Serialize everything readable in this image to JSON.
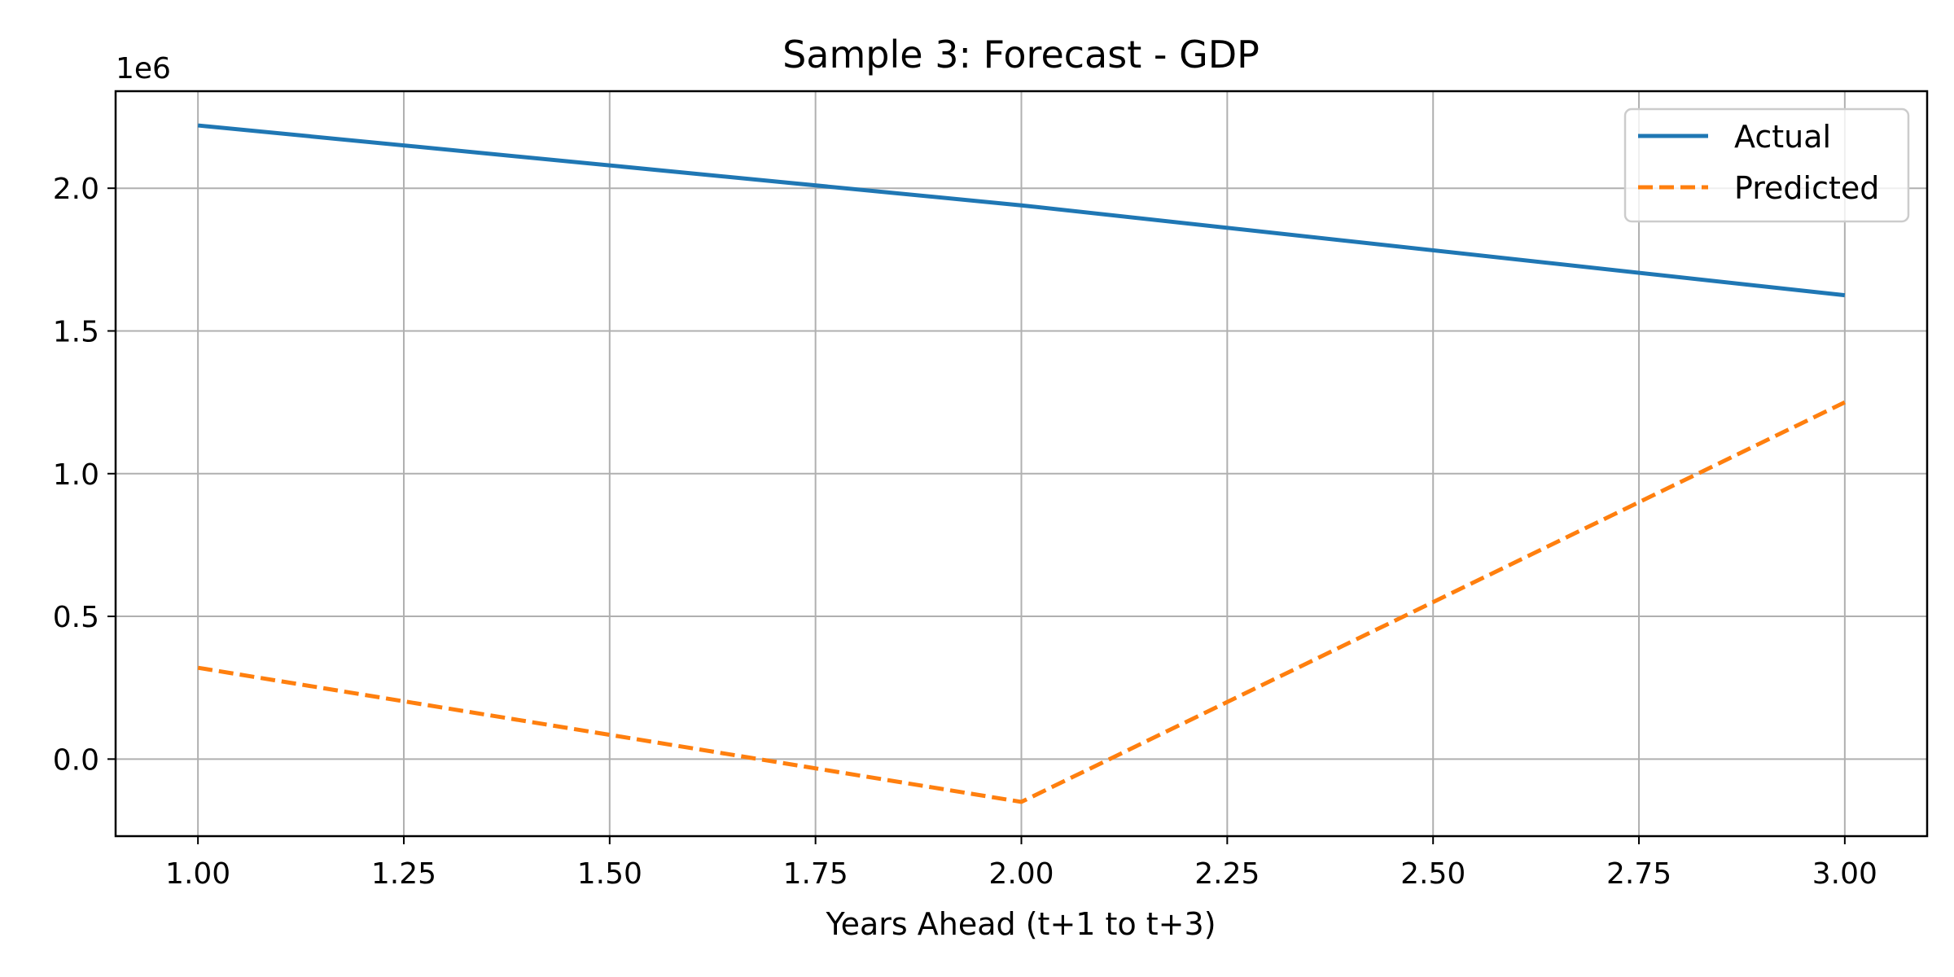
{
  "chart_data": {
    "type": "line",
    "title": "Sample 3: Forecast - GDP",
    "xlabel": "Years Ahead (t+1 to t+3)",
    "ylabel": "",
    "y_offset_label": "1e6",
    "x": [
      1,
      2,
      3
    ],
    "xlim": [
      0.9,
      3.1
    ],
    "ylim": [
      -270000,
      2340000
    ],
    "x_ticks": [
      1.0,
      1.25,
      1.5,
      1.75,
      2.0,
      2.25,
      2.5,
      2.75,
      3.0
    ],
    "x_tick_labels": [
      "1.00",
      "1.25",
      "1.50",
      "1.75",
      "2.00",
      "2.25",
      "2.50",
      "2.75",
      "3.00"
    ],
    "y_ticks": [
      0,
      500000,
      1000000,
      1500000,
      2000000
    ],
    "y_tick_labels": [
      "0.0",
      "0.5",
      "1.0",
      "1.5",
      "2.0"
    ],
    "grid": true,
    "legend_position": "top-right",
    "series": [
      {
        "name": "Actual",
        "values": [
          2220000,
          1940000,
          1625000
        ],
        "color": "#1f77b4",
        "style": "solid"
      },
      {
        "name": "Predicted",
        "values": [
          320000,
          -150000,
          1250000
        ],
        "color": "#ff7f0e",
        "style": "dashed"
      }
    ]
  }
}
